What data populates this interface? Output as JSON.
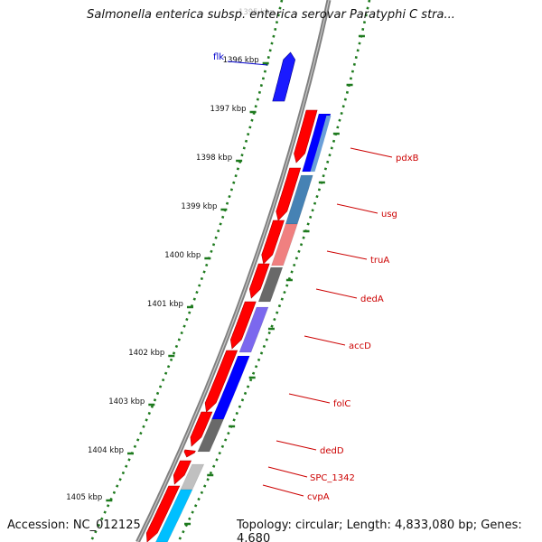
{
  "title": "Salmonella enterica subsp. enterica serovar Paratyphi C stra...",
  "accession": "Accession: NC_012125",
  "topology": "Topology: circular; Length: 4,833,080 bp; Genes: 4,680",
  "colors": {
    "backbone": "#808080",
    "ticks": "#1e7a1e",
    "forward_gene": "#ff0000",
    "label_line": "#cc0000",
    "flk_label": "#0000cc"
  },
  "scale": {
    "ticks": [
      {
        "label": "1396 kbp"
      },
      {
        "label": "1397 kbp"
      },
      {
        "label": "1398 kbp"
      },
      {
        "label": "1399 kbp"
      },
      {
        "label": "1400 kbp"
      },
      {
        "label": "1401 kbp"
      },
      {
        "label": "1402 kbp"
      },
      {
        "label": "1403 kbp"
      },
      {
        "label": "1404 kbp"
      },
      {
        "label": "1405 kbp"
      }
    ],
    "partial_top_label": "1395 kbp"
  },
  "genes": [
    {
      "name": "flk",
      "color": "#1a1aff"
    },
    {
      "name": "pdxB",
      "color": "#0000ff"
    },
    {
      "name": "usg",
      "color": "#4682b4"
    },
    {
      "name": "truA",
      "color": "#f08080"
    },
    {
      "name": "dedA",
      "color": "#696969"
    },
    {
      "name": "accD",
      "color": "#7b68ee"
    },
    {
      "name": "folC",
      "color": "#0000ff"
    },
    {
      "name": "dedD",
      "color": "#696969"
    },
    {
      "name": "SPC_1342",
      "color": "#c0c0c0"
    },
    {
      "name": "cvpA",
      "color": "#00bfff"
    }
  ]
}
